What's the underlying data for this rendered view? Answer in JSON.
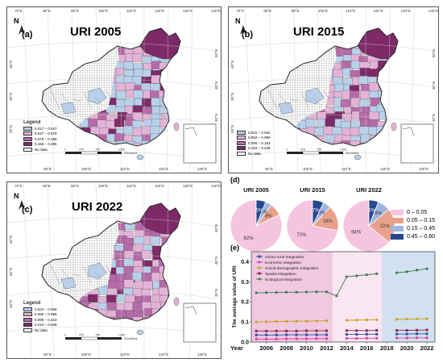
{
  "colors": {
    "c1": "#b8d0ea",
    "c2": "#e3b3d7",
    "c3": "#b66aa9",
    "c4": "#7f2a68",
    "nodata": "#ffffff"
  },
  "maps": [
    {
      "id": "a",
      "label": "(a)",
      "title": "URI 2005",
      "legend_title": "Legend",
      "legend": [
        "0.017 – 0.047",
        "0.047 – 0.079",
        "0.079 – 0.156",
        "0.156 – 0.295",
        "No data"
      ]
    },
    {
      "id": "b",
      "label": "(b)",
      "title": "URI 2015",
      "legend_title": "Legend",
      "legend": [
        "0.021 – 0.052",
        "0.052 – 0.090",
        "0.090 – 0.163",
        "0.163 – 0.438",
        "No data"
      ]
    },
    {
      "id": "c",
      "label": "(c)",
      "title": "URI 2022",
      "legend_title": "Legend",
      "legend": [
        "0.024 – 0.056",
        "0.056 – 0.099",
        "0.099 – 0.210",
        "0.210 – 0.546",
        "No data"
      ]
    }
  ],
  "map_ticks": {
    "top": [
      "70°E",
      "80°E",
      "90°E",
      "100°E",
      "110°E",
      "120°E",
      "130°E",
      "140°E"
    ],
    "bottom": [
      "90°E",
      "100°E",
      "110°E",
      "120°E",
      "130°E"
    ],
    "left": [
      "40°N",
      "30°N",
      "20°N"
    ],
    "right": [
      "50°N",
      "40°N",
      "30°N"
    ],
    "north": "N",
    "scale_unit": "Kilometers",
    "scale_nums": [
      "0",
      "375",
      "750",
      "1,500"
    ]
  },
  "pie_section": {
    "label": "(d)",
    "pies": [
      {
        "title": "URI 2005",
        "values": [
          82,
          8,
          4,
          6
        ],
        "labels": [
          "82%",
          "8%",
          "4%",
          "6%"
        ]
      },
      {
        "title": "URI 2015",
        "values": [
          72,
          16,
          5,
          7
        ],
        "labels": [
          "72%",
          "16%",
          "5%",
          "7%"
        ]
      },
      {
        "title": "URI 2022",
        "values": [
          64,
          22,
          8,
          6
        ],
        "labels": [
          "64%",
          "22%",
          "8%",
          "6%"
        ]
      }
    ],
    "legend": [
      {
        "label": "0 – 0.05",
        "color": "#f5c4de"
      },
      {
        "label": "0.05 – 0.15",
        "color": "#eaa18c"
      },
      {
        "label": "0.15 – 0.45",
        "color": "#9db6dd"
      },
      {
        "label": "0.45 – 0.60",
        "color": "#27468f"
      }
    ]
  },
  "chart_data": {
    "type": "line",
    "label": "(e)",
    "xlabel": "Year",
    "ylabel": "The average value of URI",
    "x_ticks": [
      "2006",
      "2008",
      "2010",
      "2012",
      "2014",
      "2016",
      "2018",
      "2020",
      "2022"
    ],
    "y_ticks": [
      "0.0",
      "0.1",
      "0.2",
      "0.3",
      "0.4"
    ],
    "ylim": [
      0,
      0.45
    ],
    "xlim": [
      2004.5,
      2022.8
    ],
    "x": [
      2005,
      2006,
      2007,
      2008,
      2009,
      2010,
      2011,
      2012,
      2013,
      2014,
      2015,
      2016,
      2017,
      2018,
      2019,
      2020,
      2021,
      2022
    ],
    "background_bands": [
      {
        "from": 2004.5,
        "to": 2012.6,
        "color": "#f0c8e0"
      },
      {
        "from": 2012.6,
        "to": 2017.5,
        "color": "#f9e6f1"
      },
      {
        "from": 2017.5,
        "to": 2022.8,
        "color": "#d2e1ef"
      }
    ],
    "series": [
      {
        "name": "Urban-rural Integration",
        "color": "#2b4fa0",
        "marker": "square",
        "values": [
          0.035,
          0.035,
          0.035,
          0.036,
          0.036,
          0.036,
          0.036,
          0.036,
          null,
          0.038,
          0.038,
          0.039,
          0.039,
          null,
          0.04,
          0.04,
          0.041,
          0.041
        ]
      },
      {
        "name": "Economic Integration",
        "color": "#d63fa8",
        "marker": "circle",
        "values": [
          0.015,
          0.015,
          0.015,
          0.016,
          0.016,
          0.016,
          0.017,
          0.017,
          null,
          0.018,
          0.018,
          0.019,
          0.019,
          null,
          0.02,
          0.02,
          0.021,
          0.021
        ]
      },
      {
        "name": "Social-demographic Integration",
        "color": "#c8a323",
        "marker": "circle",
        "values": [
          0.1,
          0.101,
          0.102,
          0.103,
          0.104,
          0.104,
          0.105,
          0.106,
          null,
          0.108,
          0.109,
          0.11,
          0.111,
          null,
          0.113,
          0.114,
          0.115,
          0.116
        ]
      },
      {
        "name": "Spatial Integration",
        "color": "#8a2550",
        "marker": "square",
        "values": [
          0.055,
          0.055,
          0.055,
          0.055,
          0.055,
          0.056,
          0.056,
          0.056,
          null,
          0.057,
          0.057,
          0.057,
          0.058,
          null,
          0.058,
          0.058,
          0.059,
          0.06
        ]
      },
      {
        "name": "Ecological Integration",
        "color": "#3e7b4e",
        "marker": "circle",
        "values": [
          0.245,
          0.246,
          0.247,
          0.248,
          0.248,
          0.249,
          0.25,
          0.25,
          0.23,
          0.325,
          0.33,
          0.335,
          0.34,
          null,
          0.345,
          0.35,
          0.358,
          0.365
        ]
      }
    ]
  }
}
